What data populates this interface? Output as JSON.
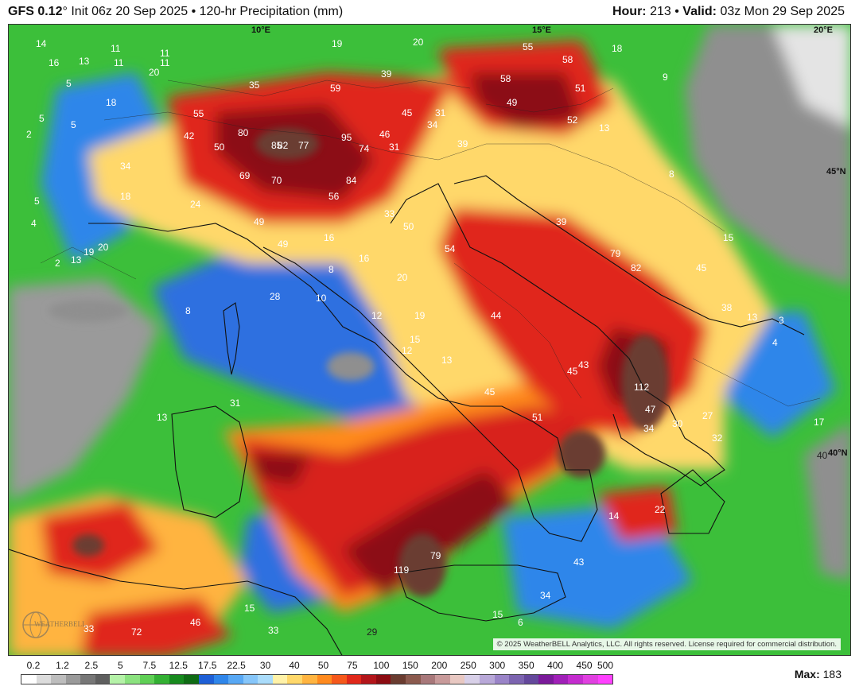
{
  "header": {
    "model": "GFS 0.12",
    "deg": "°",
    "init": "Init 06z 20 Sep 2025",
    "sep": "•",
    "product": "120-hr Precipitation (mm)",
    "hour_label": "Hour:",
    "hour_value": "213",
    "valid_label": "Valid:",
    "valid_value": "03z Mon 29 Sep 2025"
  },
  "grid_labels": [
    "10°E",
    "15°E",
    "20°E",
    "45°N",
    "40°N"
  ],
  "map_labels": [
    "14",
    "16",
    "13",
    "11",
    "11",
    "11",
    "11",
    "20",
    "19",
    "20",
    "18",
    "55",
    "58",
    "39",
    "35",
    "59",
    "45",
    "31",
    "58",
    "49",
    "51",
    "52",
    "9",
    "5",
    "5",
    "5",
    "2",
    "18",
    "55",
    "42",
    "50",
    "80",
    "85",
    "82",
    "77",
    "95",
    "74",
    "46",
    "31",
    "34",
    "39",
    "34",
    "13",
    "8",
    "5",
    "4",
    "2",
    "13",
    "19",
    "20",
    "24",
    "18",
    "69",
    "70",
    "56",
    "84",
    "49",
    "49",
    "33",
    "50",
    "54",
    "39",
    "79",
    "82",
    "45",
    "15",
    "16",
    "16",
    "8",
    "20",
    "28",
    "10",
    "12",
    "19",
    "12",
    "15",
    "13",
    "44",
    "43",
    "45",
    "38",
    "13",
    "3",
    "45",
    "51",
    "112",
    "47",
    "30",
    "27",
    "32",
    "34",
    "40",
    "8",
    "13",
    "31",
    "22",
    "14",
    "43",
    "79",
    "119",
    "34",
    "15",
    "6",
    "15",
    "46",
    "72",
    "33",
    "33",
    "29",
    "4",
    "17"
  ],
  "copyright": "© 2025 WeatherBELL Analytics, LLC. All rights reserved. License required for commercial distribution.",
  "logo_text": "WEATHERBELL",
  "legend": {
    "labels": [
      "0.2",
      "1.2",
      "2.5",
      "5",
      "7.5",
      "12.5",
      "17.5",
      "22.5",
      "30",
      "40",
      "50",
      "75",
      "100",
      "150",
      "200",
      "250",
      "300",
      "350",
      "400",
      "450",
      "500"
    ],
    "colors": [
      "#ffffff",
      "#dcdcdc",
      "#bdbdbd",
      "#9a9a9a",
      "#777777",
      "#5f5f5f",
      "#b5f2a8",
      "#8be27f",
      "#5fcf55",
      "#33b033",
      "#178a1e",
      "#0f6b14",
      "#1e5fd6",
      "#2f86ea",
      "#58a8f4",
      "#86c6fa",
      "#aadcfb",
      "#fff2a8",
      "#ffd86a",
      "#ffb440",
      "#ff8a1e",
      "#f5581b",
      "#e0281a",
      "#b3151a",
      "#8c0c12",
      "#6a3c30",
      "#8b5a4e",
      "#a8787a",
      "#c89a9a",
      "#e8c8c2",
      "#d8d0e8",
      "#b8a8d8",
      "#9a84c8",
      "#7c64b0",
      "#64489c",
      "#7a1a9a",
      "#a020b8",
      "#c42ccf",
      "#e040e0",
      "#ff40ff"
    ]
  },
  "max": {
    "label": "Max:",
    "value": "183"
  },
  "colors": {
    "sea_blue": "#2f6fe0",
    "land_green": "#3cbf3a",
    "heavy_red": "#d8201a",
    "extreme": "#8c0c12"
  }
}
